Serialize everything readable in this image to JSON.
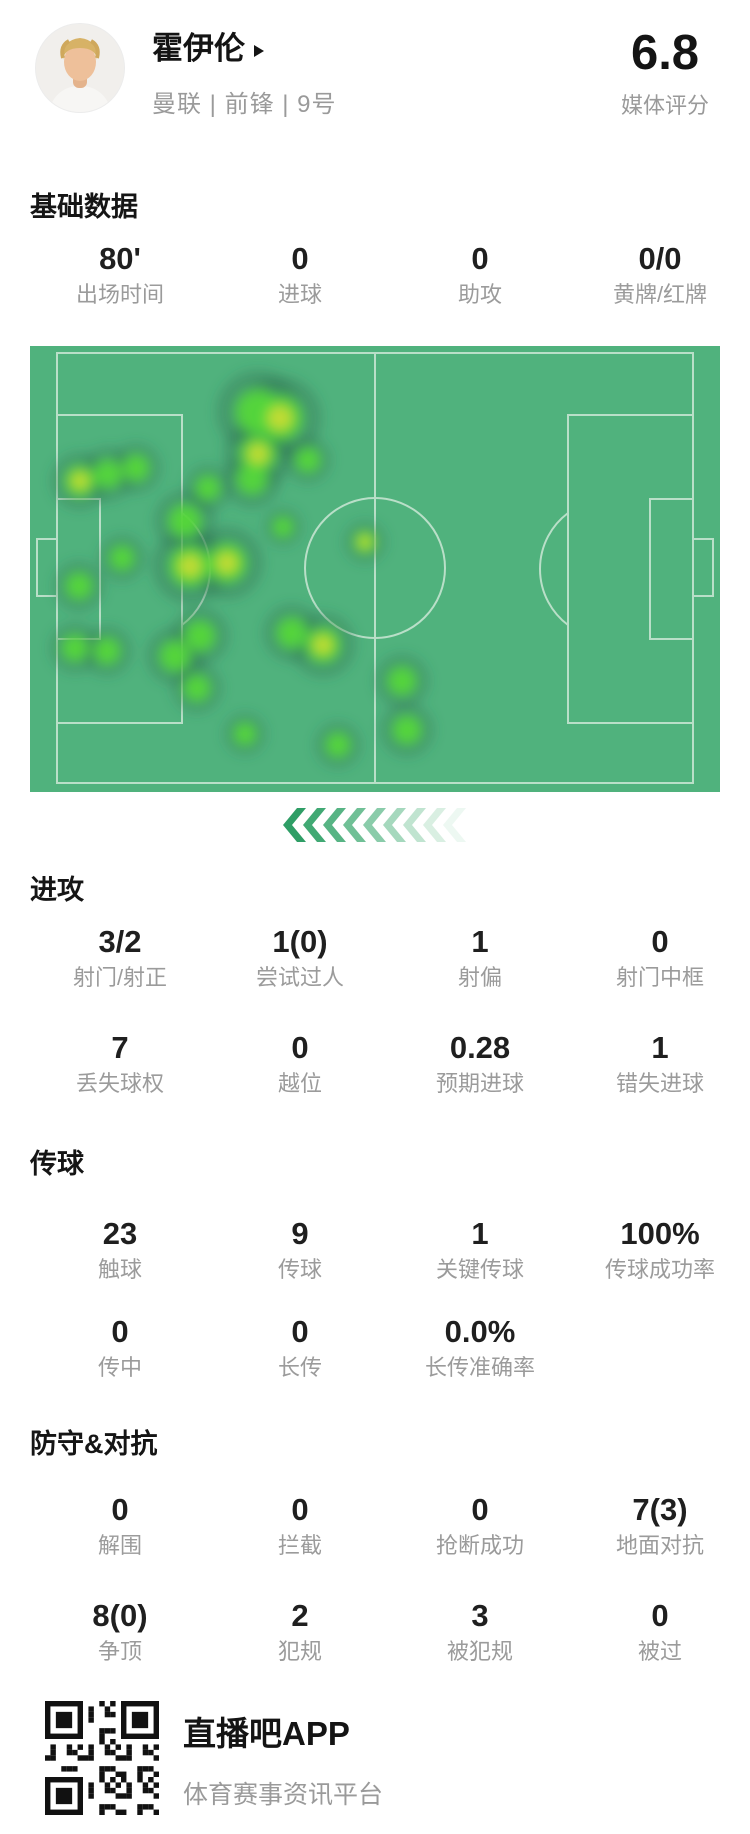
{
  "header": {
    "player_name": "霍伊伦",
    "team_info": "曼联 | 前锋 | 9号",
    "rating": "6.8",
    "rating_label": "媒体评分"
  },
  "sections": {
    "basic": {
      "title": "基础数据",
      "stats": [
        {
          "value": "80'",
          "label": "出场时间"
        },
        {
          "value": "0",
          "label": "进球"
        },
        {
          "value": "0",
          "label": "助攻"
        },
        {
          "value": "0/0",
          "label": "黄牌/红牌"
        }
      ]
    },
    "attack": {
      "title": "进攻",
      "stats": [
        {
          "value": "3/2",
          "label": "射门/射正"
        },
        {
          "value": "1(0)",
          "label": "尝试过人"
        },
        {
          "value": "1",
          "label": "射偏"
        },
        {
          "value": "0",
          "label": "射门中框"
        },
        {
          "value": "7",
          "label": "丢失球权"
        },
        {
          "value": "0",
          "label": "越位"
        },
        {
          "value": "0.28",
          "label": "预期进球"
        },
        {
          "value": "1",
          "label": "错失进球"
        }
      ]
    },
    "passing": {
      "title": "传球",
      "stats": [
        {
          "value": "23",
          "label": "触球"
        },
        {
          "value": "9",
          "label": "传球"
        },
        {
          "value": "1",
          "label": "关键传球"
        },
        {
          "value": "100%",
          "label": "传球成功率"
        },
        {
          "value": "0",
          "label": "传中"
        },
        {
          "value": "0",
          "label": "长传"
        },
        {
          "value": "0.0%",
          "label": "长传准确率"
        }
      ]
    },
    "defense": {
      "title": "防守&对抗",
      "stats": [
        {
          "value": "0",
          "label": "解围"
        },
        {
          "value": "0",
          "label": "拦截"
        },
        {
          "value": "0",
          "label": "抢断成功"
        },
        {
          "value": "7(3)",
          "label": "地面对抗"
        },
        {
          "value": "8(0)",
          "label": "争顶"
        },
        {
          "value": "2",
          "label": "犯规"
        },
        {
          "value": "3",
          "label": "被犯规"
        },
        {
          "value": "0",
          "label": "被过"
        }
      ]
    }
  },
  "heatmap": {
    "pitch_color": "#50b27d",
    "line_color": "#b9dfc8",
    "spot_color": "#55d83a",
    "core_color": "#c9dc36",
    "halo_color": "#2c7150",
    "spots": [
      [
        228,
        66,
        22,
        1
      ],
      [
        250,
        72,
        22,
        2
      ],
      [
        228,
        108,
        18,
        2
      ],
      [
        222,
        133,
        15,
        1
      ],
      [
        50,
        135,
        15,
        2
      ],
      [
        78,
        128,
        14,
        1
      ],
      [
        106,
        122,
        13,
        1
      ],
      [
        278,
        114,
        12,
        1
      ],
      [
        178,
        142,
        12,
        1
      ],
      [
        155,
        175,
        16,
        1
      ],
      [
        253,
        181,
        10,
        1
      ],
      [
        49,
        240,
        13,
        1
      ],
      [
        92,
        212,
        12,
        1
      ],
      [
        160,
        220,
        20,
        2
      ],
      [
        197,
        217,
        19,
        2
      ],
      [
        45,
        302,
        13,
        1
      ],
      [
        77,
        305,
        13,
        1
      ],
      [
        170,
        290,
        15,
        1
      ],
      [
        145,
        310,
        15,
        1
      ],
      [
        167,
        342,
        13,
        1
      ],
      [
        262,
        287,
        15,
        1
      ],
      [
        293,
        299,
        17,
        2
      ],
      [
        215,
        388,
        11,
        1
      ],
      [
        308,
        399,
        12,
        1
      ],
      [
        335,
        196,
        11,
        2
      ],
      [
        372,
        335,
        14,
        1
      ],
      [
        377,
        384,
        14,
        1
      ]
    ]
  },
  "chevrons": {
    "colors": [
      "#2f9e66",
      "#41a974",
      "#57b484",
      "#70c096",
      "#8accaa",
      "#a5d8bd",
      "#c0e4d0",
      "#d9efe2",
      "#edf8f2"
    ]
  },
  "footer": {
    "app_name": "直播吧APP",
    "app_tagline": "体育赛事资讯平台"
  }
}
